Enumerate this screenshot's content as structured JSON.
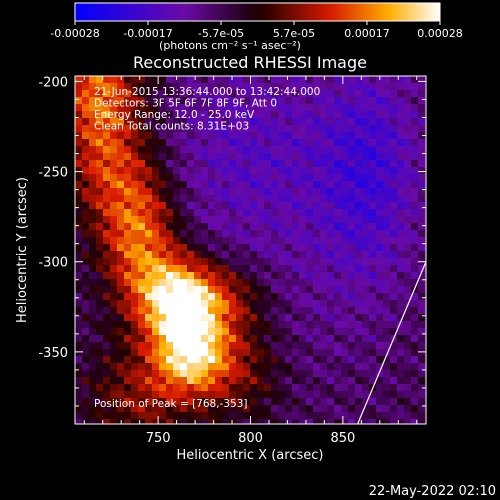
{
  "colorbar": {
    "tick_labels": [
      "-0.00028",
      "-0.00017",
      "-5.7e-05",
      "5.7e-05",
      "0.00017",
      "0.00028"
    ],
    "unit_label": "(photons cm⁻² s⁻¹ asec⁻²)",
    "range": [
      -0.00028,
      0.00028
    ]
  },
  "chart_data": {
    "type": "heatmap",
    "title": "Reconstructed RHESSI Image",
    "xlabel": "Heliocentric X (arcsec)",
    "ylabel": "Heliocentric Y (arcsec)",
    "xlim": [
      705,
      895
    ],
    "ylim": [
      -390,
      -197
    ],
    "x_ticks": [
      750,
      800,
      850
    ],
    "y_ticks": [
      -200,
      -250,
      -300,
      -350
    ],
    "x_tick_labels": [
      "750",
      "800",
      "850"
    ],
    "y_tick_labels": [
      "-200",
      "-250",
      "-300",
      "-350"
    ],
    "info_lines": [
      "21-Jun-2015 13:36:44.000 to 13:42:44.000",
      "Detectors: 3F 5F 6F 7F 8F 9F, Att 0",
      "Energy Range: 12.0 - 25.0 keV",
      "Clean     Total counts: 8.31E+03"
    ],
    "peak_label": "Position of Peak = [768,-353]",
    "peak": [
      768,
      -353
    ],
    "limb_line": [
      [
        858,
        -390
      ],
      [
        895,
        -300
      ]
    ],
    "colormap": "rhessi-blue-purple-red-yellow-white"
  },
  "footer": {
    "date": "22-May-2022 02:10"
  }
}
